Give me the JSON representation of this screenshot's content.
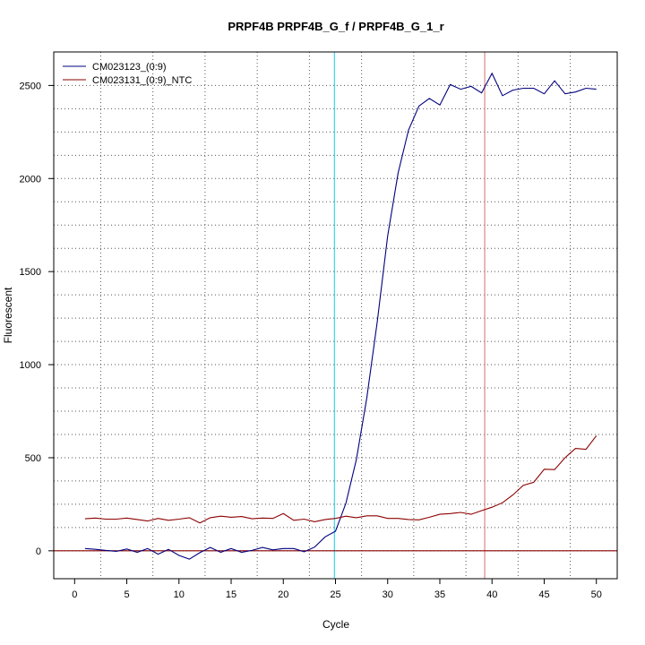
{
  "chart_data": {
    "type": "line",
    "title": "PRPF4B  PRPF4B_G_f / PRPF4B_G_1_r",
    "xlabel": "Cycle",
    "ylabel": "Fluorescent",
    "xlim": [
      -2,
      52
    ],
    "ylim": [
      -150,
      2680
    ],
    "xticks": [
      0,
      5,
      10,
      15,
      20,
      25,
      30,
      35,
      40,
      45,
      50
    ],
    "yticks": [
      0,
      500,
      1000,
      1500,
      2000,
      2500
    ],
    "grid": "dotted",
    "legend": "top-left",
    "x": [
      1,
      2,
      3,
      4,
      5,
      6,
      7,
      8,
      9,
      10,
      11,
      12,
      13,
      14,
      15,
      16,
      17,
      18,
      19,
      20,
      21,
      22,
      23,
      24,
      25,
      26,
      27,
      28,
      29,
      30,
      31,
      32,
      33,
      34,
      35,
      36,
      37,
      38,
      39,
      40,
      41,
      42,
      43,
      44,
      45,
      46,
      47,
      48,
      49,
      50
    ],
    "series": [
      {
        "name": "CM023123_(0:9)",
        "color": "#00007f",
        "values": [
          12,
          8,
          2,
          -3,
          10,
          -8,
          12,
          -18,
          8,
          -25,
          -45,
          -10,
          18,
          -8,
          12,
          -8,
          2,
          18,
          5,
          12,
          12,
          -5,
          20,
          75,
          105,
          255,
          490,
          820,
          1230,
          1690,
          2030,
          2260,
          2390,
          2430,
          2395,
          2505,
          2480,
          2495,
          2460,
          2565,
          2445,
          2475,
          2485,
          2485,
          2455,
          2525,
          2455,
          2465,
          2485,
          2480
        ]
      },
      {
        "name": "CM023131_(0:9)_NTC",
        "color": "#8b0000",
        "values": [
          172,
          176,
          170,
          170,
          176,
          168,
          160,
          174,
          164,
          170,
          178,
          150,
          178,
          186,
          180,
          184,
          172,
          176,
          174,
          200,
          164,
          170,
          156,
          168,
          174,
          186,
          178,
          188,
          188,
          174,
          174,
          168,
          166,
          180,
          196,
          200,
          206,
          196,
          216,
          234,
          258,
          300,
          352,
          368,
          438,
          436,
          500,
          550,
          545,
          618
        ]
      }
    ],
    "vlines": [
      {
        "x": 24.9,
        "color": "#36d7e8"
      },
      {
        "x": 39.3,
        "color": "#d98787"
      }
    ],
    "hlines": [
      {
        "y": 0,
        "color": "#8b0000"
      }
    ]
  }
}
